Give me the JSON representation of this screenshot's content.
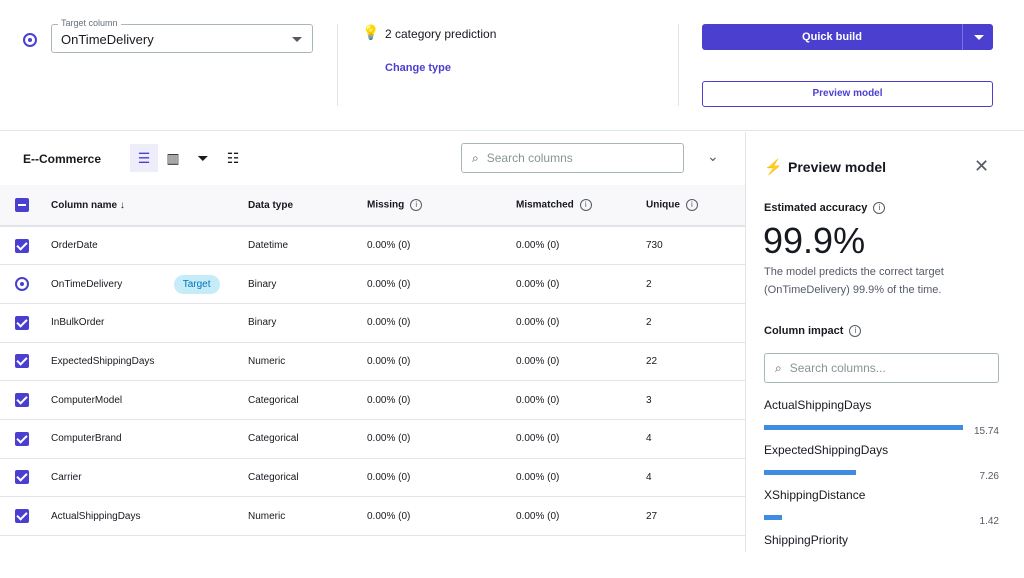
{
  "header": {
    "target_label": "Target column",
    "target_value": "OnTimeDelivery",
    "prediction_type": "2 category prediction",
    "change_type": "Change type",
    "quick_build": "Quick build",
    "preview_model": "Preview model"
  },
  "toolbar": {
    "dataset": "E--Commerce",
    "search_placeholder": "Search columns"
  },
  "table": {
    "headers": [
      "Column name",
      "Data type",
      "Missing",
      "Mismatched",
      "Unique"
    ],
    "rows": [
      {
        "name": "OrderDate",
        "type": "Datetime",
        "missing": "0.00% (0)",
        "mismatched": "0.00% (0)",
        "unique": "730",
        "target": false
      },
      {
        "name": "OnTimeDelivery",
        "type": "Binary",
        "missing": "0.00% (0)",
        "mismatched": "0.00% (0)",
        "unique": "2",
        "target": true,
        "badge": "Target"
      },
      {
        "name": "InBulkOrder",
        "type": "Binary",
        "missing": "0.00% (0)",
        "mismatched": "0.00% (0)",
        "unique": "2",
        "target": false
      },
      {
        "name": "ExpectedShippingDays",
        "type": "Numeric",
        "missing": "0.00% (0)",
        "mismatched": "0.00% (0)",
        "unique": "22",
        "target": false
      },
      {
        "name": "ComputerModel",
        "type": "Categorical",
        "missing": "0.00% (0)",
        "mismatched": "0.00% (0)",
        "unique": "3",
        "target": false
      },
      {
        "name": "ComputerBrand",
        "type": "Categorical",
        "missing": "0.00% (0)",
        "mismatched": "0.00% (0)",
        "unique": "4",
        "target": false
      },
      {
        "name": "Carrier",
        "type": "Categorical",
        "missing": "0.00% (0)",
        "mismatched": "0.00% (0)",
        "unique": "4",
        "target": false
      },
      {
        "name": "ActualShippingDays",
        "type": "Numeric",
        "missing": "0.00% (0)",
        "mismatched": "0.00% (0)",
        "unique": "27",
        "target": false
      }
    ]
  },
  "preview": {
    "title": "Preview model",
    "accuracy_label": "Estimated accuracy",
    "accuracy": "99.9%",
    "description": "The model predicts the correct target (OnTimeDelivery) 99.9% of the time.",
    "impact_label": "Column impact",
    "search_placeholder": "Search columns...",
    "impacts": [
      {
        "name": "ActualShippingDays",
        "value": 15.74,
        "label": "15.74"
      },
      {
        "name": "ExpectedShippingDays",
        "value": 7.26,
        "label": "7.26"
      },
      {
        "name": "XShippingDistance",
        "value": 1.42,
        "label": "1.42"
      },
      {
        "name": "ShippingPriority",
        "value": null,
        "label": ""
      }
    ]
  },
  "colors": {
    "accent": "#4b3fd0",
    "bar": "#3f8ce0",
    "badge_bg": "#c6ecf7"
  }
}
